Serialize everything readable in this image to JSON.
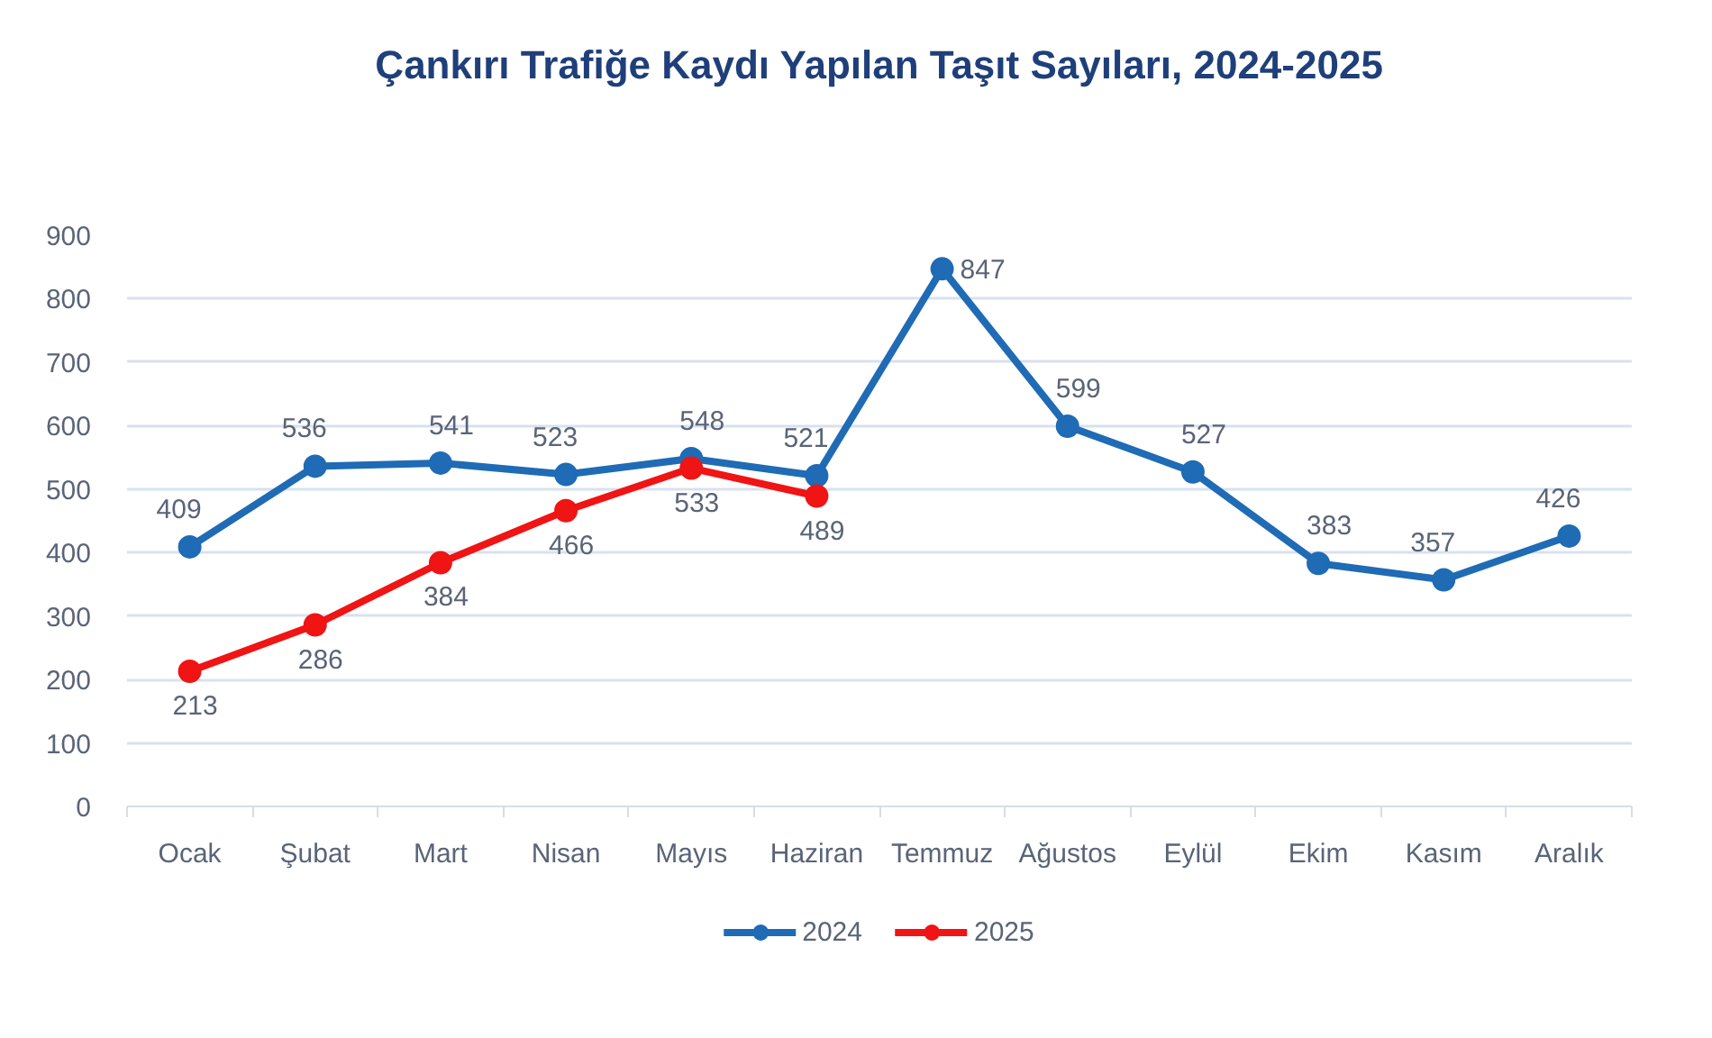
{
  "chart_data": {
    "type": "line",
    "title": "Çankırı Trafiğe Kaydı Yapılan Taşıt Sayıları, 2024-2025",
    "categories": [
      "Ocak",
      "Şubat",
      "Mart",
      "Nisan",
      "Mayıs",
      "Haziran",
      "Temmuz",
      "Ağustos",
      "Eylül",
      "Ekim",
      "Kasım",
      "Aralık"
    ],
    "series": [
      {
        "name": "2024",
        "color": "#1f6bb5",
        "values": [
          409,
          536,
          541,
          523,
          548,
          521,
          847,
          599,
          527,
          383,
          357,
          426
        ]
      },
      {
        "name": "2025",
        "color": "#f01414",
        "values": [
          213,
          286,
          384,
          466,
          533,
          489,
          null,
          null,
          null,
          null,
          null,
          null
        ]
      }
    ],
    "ylim": [
      0,
      900
    ],
    "yticks": [
      0,
      100,
      200,
      300,
      400,
      500,
      600,
      700,
      800,
      900
    ],
    "grid": "y",
    "legend": "bottom",
    "marker": "circle",
    "line_style": "solid",
    "data_labels": true
  }
}
